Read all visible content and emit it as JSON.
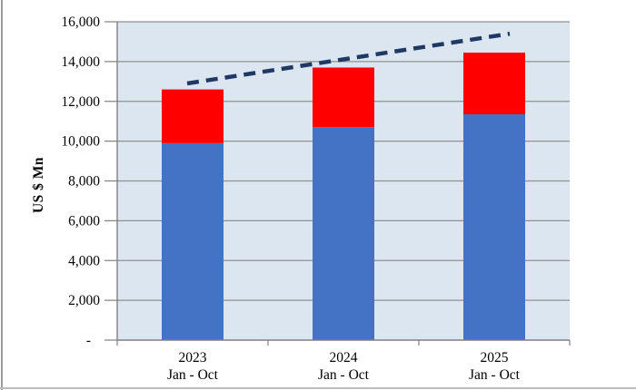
{
  "chart_data": {
    "type": "bar",
    "stacked": true,
    "title": "",
    "xlabel": "",
    "ylabel": "US $ Mn",
    "ylim": [
      0,
      16000
    ],
    "ytick_step": 2000,
    "yticks": [
      {
        "value": 0,
        "label": "-"
      },
      {
        "value": 2000,
        "label": "2,000"
      },
      {
        "value": 4000,
        "label": "4,000"
      },
      {
        "value": 6000,
        "label": "6,000"
      },
      {
        "value": 8000,
        "label": "8,000"
      },
      {
        "value": 10000,
        "label": "10,000"
      },
      {
        "value": 12000,
        "label": "12,000"
      },
      {
        "value": 14000,
        "label": "14,000"
      },
      {
        "value": 16000,
        "label": "16,000"
      }
    ],
    "categories": [
      {
        "line1": "2023",
        "line2": "Jan - Oct"
      },
      {
        "line1": "2024",
        "line2": "Jan - Oct"
      },
      {
        "line1": "2025",
        "line2": "Jan - Oct"
      }
    ],
    "series": [
      {
        "name": "blue-lower-segment",
        "color": "#4472C4",
        "values": [
          9900,
          10700,
          11350
        ]
      },
      {
        "name": "red-upper-segment",
        "color": "#FF0000",
        "values": [
          2700,
          3000,
          3100
        ]
      }
    ],
    "stack_totals": [
      12600,
      13700,
      14450
    ],
    "trendline": {
      "style": "dashed",
      "color": "#1F3864",
      "start_value": 12900,
      "end_value": 15400
    },
    "legend": "none",
    "grid": true,
    "plot_background": "#DCE6F1",
    "gridline_color": "#909090",
    "axis_color": "#808080",
    "text_color": "#000000"
  }
}
